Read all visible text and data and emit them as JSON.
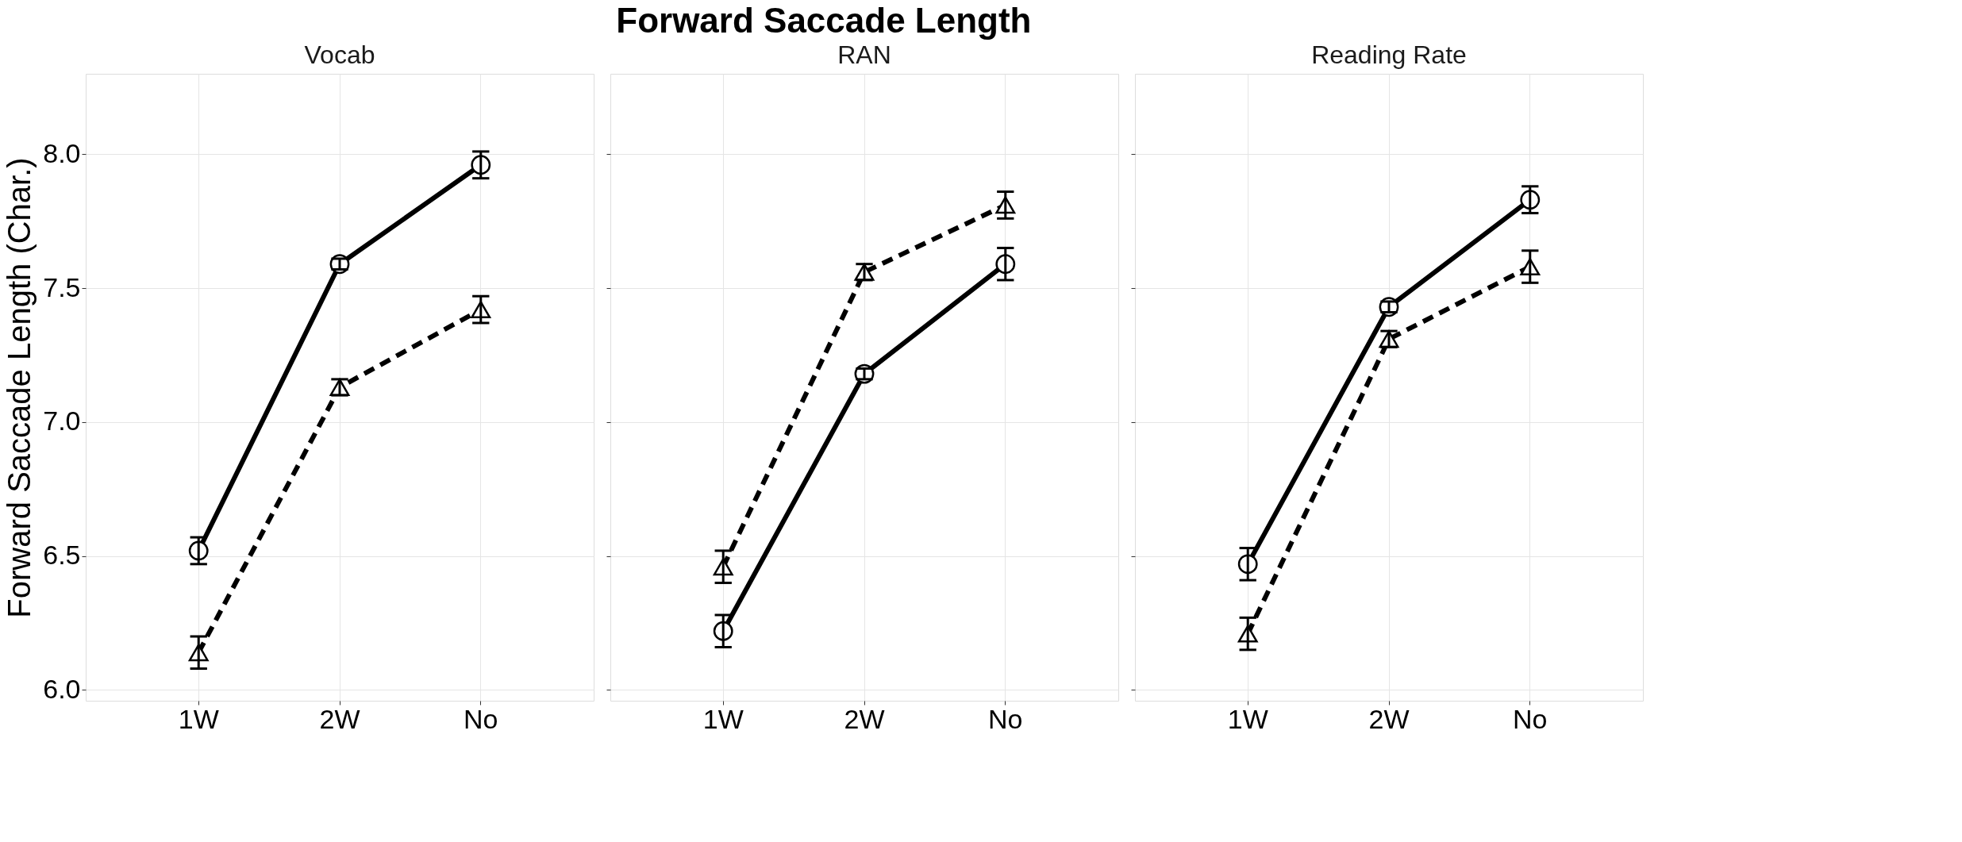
{
  "chart_data": [
    {
      "type": "line",
      "subtitle": "Vocab",
      "ylabel": "Forward Saccade Length (Char.)",
      "categories": [
        "1W",
        "2W",
        "No"
      ],
      "ylim": [
        5.96,
        8.3
      ],
      "yticks": [
        {
          "value": 6,
          "label": "6.0"
        },
        {
          "value": 6.5,
          "label": "6.5"
        },
        {
          "value": 7,
          "label": "7.0"
        },
        {
          "value": 7.5,
          "label": "7.5"
        },
        {
          "value": 8,
          "label": "8.0"
        }
      ],
      "grid": true,
      "series": [
        {
          "color": "#000000",
          "line_style": "solid",
          "marker": "circle",
          "values": [
            6.52,
            7.59,
            7.96
          ],
          "errors": [
            0.05,
            0.02,
            0.05
          ]
        },
        {
          "color": "#000000",
          "line_style": "dashed",
          "marker": "triangle",
          "values": [
            6.14,
            7.13,
            7.42
          ],
          "errors": [
            0.06,
            0.03,
            0.05
          ]
        }
      ]
    },
    {
      "type": "line",
      "title": "Forward Saccade Length",
      "subtitle": "RAN",
      "categories": [
        "1W",
        "2W",
        "No"
      ],
      "ylim": [
        5.96,
        8.3
      ],
      "yticks": [
        6,
        6.5,
        7,
        7.5,
        8
      ],
      "grid": true,
      "tick_labels": "x",
      "series": [
        {
          "color": "#000000",
          "line_style": "solid",
          "marker": "circle",
          "values": [
            6.22,
            7.18,
            7.59
          ],
          "errors": [
            0.06,
            0.02,
            0.06
          ]
        },
        {
          "color": "#000000",
          "line_style": "dashed",
          "marker": "triangle",
          "values": [
            6.46,
            7.56,
            7.81
          ],
          "errors": [
            0.06,
            0.03,
            0.05
          ]
        }
      ]
    },
    {
      "type": "line",
      "subtitle": "Reading Rate",
      "categories": [
        "1W",
        "2W",
        "No"
      ],
      "ylim": [
        5.96,
        8.3
      ],
      "yticks": [
        6,
        6.5,
        7,
        7.5,
        8
      ],
      "grid": true,
      "tick_labels": "x",
      "series": [
        {
          "color": "#000000",
          "line_style": "solid",
          "marker": "circle",
          "values": [
            6.47,
            7.43,
            7.83
          ],
          "errors": [
            0.06,
            0.02,
            0.05
          ]
        },
        {
          "color": "#000000",
          "line_style": "dashed",
          "marker": "triangle",
          "values": [
            6.21,
            7.31,
            7.58
          ],
          "errors": [
            0.06,
            0.03,
            0.06
          ]
        }
      ]
    }
  ]
}
